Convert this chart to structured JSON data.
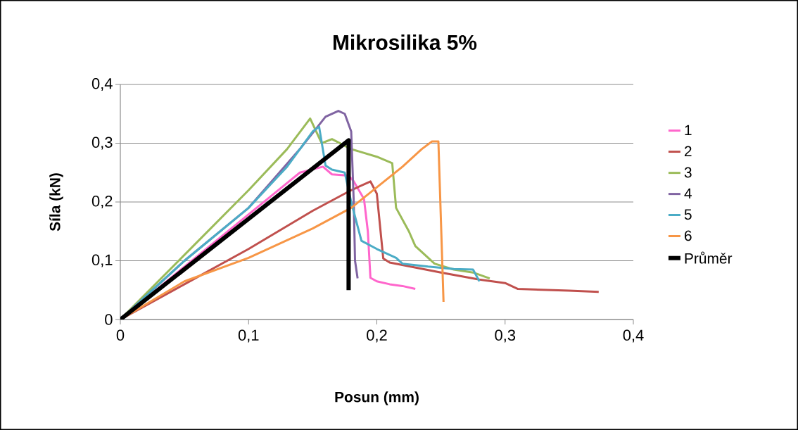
{
  "chart_data": {
    "type": "line",
    "title": "Mikrosilika 5%",
    "xlabel": "Posun (mm)",
    "ylabel": "Síla (kN)",
    "xlim": [
      0,
      0.4
    ],
    "ylim": [
      0,
      0.4
    ],
    "xticks": [
      0,
      {
        "value": 0.1,
        "label": "0,1"
      },
      {
        "value": 0.2,
        "label": "0,2"
      },
      {
        "value": 0.3,
        "label": "0,3"
      },
      {
        "value": 0.4,
        "label": "0,4"
      }
    ],
    "yticks": [
      0,
      {
        "value": 0.1,
        "label": "0,1"
      },
      {
        "value": 0.2,
        "label": "0,2"
      },
      {
        "value": 0.3,
        "label": "0,3"
      },
      {
        "value": 0.4,
        "label": "0,4"
      }
    ],
    "grid": "y",
    "legend": "right",
    "marker": "none",
    "line_style": "solid",
    "series": [
      {
        "name": "1",
        "color": "#ff66cc",
        "x": [
          0,
          0.05,
          0.14,
          0.158,
          0.165,
          0.178,
          0.182,
          0.19,
          0.193,
          0.195,
          0.2,
          0.21,
          0.22,
          0.23
        ],
        "values": [
          0,
          0.09,
          0.25,
          0.26,
          0.247,
          0.245,
          0.235,
          0.205,
          0.15,
          0.071,
          0.065,
          0.06,
          0.057,
          0.052
        ]
      },
      {
        "name": "2",
        "color": "#c0504d",
        "x": [
          0,
          0.05,
          0.1,
          0.15,
          0.18,
          0.195,
          0.2,
          0.205,
          0.21,
          0.25,
          0.28,
          0.3,
          0.31,
          0.35,
          0.373
        ],
        "values": [
          0,
          0.06,
          0.12,
          0.185,
          0.22,
          0.235,
          0.214,
          0.104,
          0.097,
          0.08,
          0.068,
          0.062,
          0.052,
          0.049,
          0.047
        ]
      },
      {
        "name": "3",
        "color": "#9bbb59",
        "x": [
          0,
          0.05,
          0.1,
          0.13,
          0.148,
          0.157,
          0.165,
          0.18,
          0.2,
          0.212,
          0.215,
          0.225,
          0.23,
          0.245,
          0.26,
          0.275,
          0.288
        ],
        "values": [
          0,
          0.11,
          0.22,
          0.29,
          0.342,
          0.3,
          0.307,
          0.29,
          0.277,
          0.266,
          0.19,
          0.15,
          0.125,
          0.095,
          0.085,
          0.08,
          0.07
        ]
      },
      {
        "name": "4",
        "color": "#8064a2",
        "x": [
          0,
          0.05,
          0.1,
          0.14,
          0.16,
          0.17,
          0.175,
          0.18,
          0.182,
          0.183,
          0.185
        ],
        "values": [
          0,
          0.1,
          0.19,
          0.29,
          0.345,
          0.355,
          0.35,
          0.32,
          0.2,
          0.1,
          0.07
        ]
      },
      {
        "name": "5",
        "color": "#4bacc6",
        "x": [
          0,
          0.05,
          0.1,
          0.13,
          0.15,
          0.155,
          0.16,
          0.165,
          0.175,
          0.18,
          0.188,
          0.2,
          0.215,
          0.22,
          0.24,
          0.26,
          0.275,
          0.28
        ],
        "values": [
          0,
          0.1,
          0.19,
          0.26,
          0.32,
          0.328,
          0.262,
          0.255,
          0.25,
          0.2,
          0.134,
          0.12,
          0.105,
          0.095,
          0.09,
          0.086,
          0.085,
          0.065
        ]
      },
      {
        "name": "6",
        "color": "#f79646",
        "x": [
          0,
          0.05,
          0.1,
          0.15,
          0.18,
          0.2,
          0.22,
          0.235,
          0.243,
          0.248,
          0.252
        ],
        "values": [
          0,
          0.065,
          0.105,
          0.155,
          0.19,
          0.225,
          0.26,
          0.29,
          0.303,
          0.303,
          0.03
        ]
      },
      {
        "name": "Průměr",
        "color": "#000000",
        "x": [
          0,
          0.178,
          0.178
        ],
        "values": [
          0,
          0.305,
          0.05
        ]
      }
    ]
  }
}
